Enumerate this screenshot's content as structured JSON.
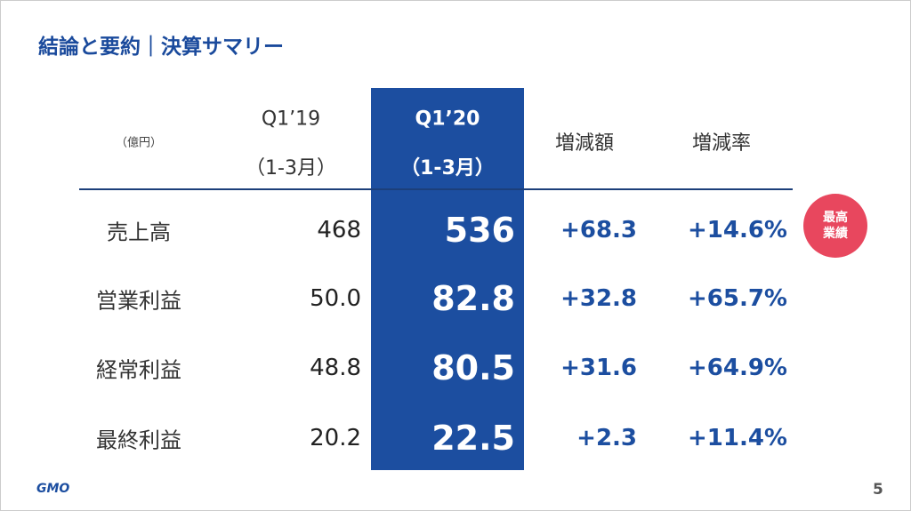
{
  "header": {
    "title": "結論と要約｜決算サマリー"
  },
  "table": {
    "unit": "（億円）",
    "columns": [
      {
        "label": "Q1’19",
        "sub": "（1-3月）"
      },
      {
        "label": "Q1’20",
        "sub": "（1-3月）"
      },
      {
        "label": "増減額"
      },
      {
        "label": "増減率"
      }
    ],
    "rows": [
      [
        "売上高",
        "468",
        "536",
        "+68.3",
        "+14.6%"
      ],
      [
        "営業利益",
        "50.0",
        "82.8",
        "+32.8",
        "+65.7%"
      ],
      [
        "経常利益",
        "48.8",
        "80.5",
        "+31.6",
        "+64.9%"
      ],
      [
        "最終利益",
        "20.2",
        "22.5",
        "+2.3",
        "+11.4%"
      ]
    ]
  },
  "badge": [
    "最高",
    "業績"
  ],
  "footer": {
    "logo": "GMO",
    "page": "5"
  }
}
